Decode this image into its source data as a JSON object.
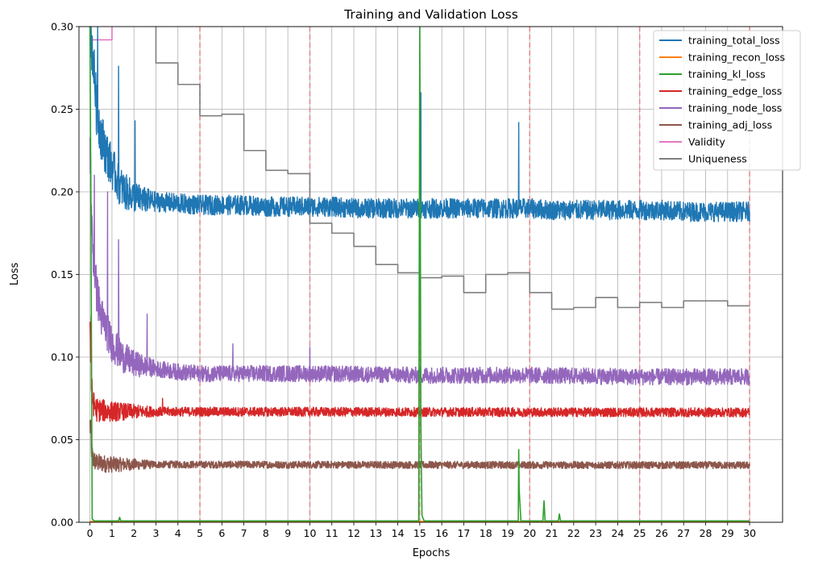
{
  "chart_data": {
    "type": "line",
    "title": "Training and Validation Loss",
    "xlabel": "Epochs",
    "ylabel": "Loss",
    "xlim": [
      -0.5,
      31.5
    ],
    "ylim": [
      0,
      0.3
    ],
    "xticks": [
      0,
      1,
      2,
      3,
      4,
      5,
      6,
      7,
      8,
      9,
      10,
      11,
      12,
      13,
      14,
      15,
      16,
      17,
      18,
      19,
      20,
      21,
      22,
      23,
      24,
      25,
      26,
      27,
      28,
      29,
      30
    ],
    "xtick_labels": [
      "0",
      "1",
      "2",
      "3",
      "4",
      "5",
      "6",
      "7",
      "8",
      "9",
      "10",
      "11",
      "12",
      "13",
      "14",
      "15",
      "16",
      "17",
      "18",
      "19",
      "20",
      "21",
      "22",
      "23",
      "24",
      "25",
      "26",
      "27",
      "28",
      "29",
      "30"
    ],
    "yticks": [
      0,
      0.05,
      0.1,
      0.15,
      0.2,
      0.25,
      0.3
    ],
    "ytick_labels": [
      "0.00",
      "0.05",
      "0.10",
      "0.15",
      "0.20",
      "0.25",
      "0.30"
    ],
    "grid": true,
    "legend_position": "top-right",
    "epoch_markers": [
      5,
      10,
      15,
      20,
      25,
      30
    ],
    "epoch_marker_color": "#e8848a",
    "series": [
      {
        "name": "training_total_loss",
        "color": "#1f77b4",
        "noisy": true,
        "noise": 0.006,
        "x": [
          0,
          0.15,
          0.3,
          0.5,
          0.7,
          1,
          1.3,
          1.6,
          2,
          2.5,
          3,
          4,
          5,
          6,
          7,
          8,
          9,
          10,
          11,
          12,
          13,
          14,
          15,
          16,
          17,
          18,
          19,
          20,
          21,
          22,
          23,
          24,
          25,
          26,
          27,
          28,
          29,
          30
        ],
        "y": [
          0.3,
          0.28,
          0.25,
          0.235,
          0.225,
          0.215,
          0.205,
          0.2,
          0.197,
          0.195,
          0.194,
          0.193,
          0.192,
          0.192,
          0.192,
          0.191,
          0.191,
          0.191,
          0.191,
          0.19,
          0.19,
          0.19,
          0.19,
          0.19,
          0.19,
          0.19,
          0.19,
          0.19,
          0.189,
          0.189,
          0.189,
          0.189,
          0.189,
          0.189,
          0.188,
          0.188,
          0.188,
          0.188
        ],
        "spikes": [
          [
            15.05,
            0.26
          ],
          [
            19.5,
            0.242
          ],
          [
            1.3,
            0.276
          ],
          [
            2.05,
            0.243
          ],
          [
            0.35,
            0.3
          ]
        ]
      },
      {
        "name": "training_recon_loss",
        "color": "#ff7f0e",
        "noisy": false,
        "x": [
          0,
          30
        ],
        "y": [
          0.0005,
          0.0005
        ]
      },
      {
        "name": "training_kl_loss",
        "color": "#2ca02c",
        "noisy": false,
        "x": [
          0,
          0.04,
          0.1,
          0.2,
          1.3,
          1.35,
          1.4,
          14.95,
          15.0,
          15.05,
          15.1,
          15.2,
          19.48,
          19.5,
          19.52,
          19.6,
          20.6,
          20.65,
          20.7,
          21.3,
          21.35,
          21.4,
          30
        ],
        "y": [
          0.3,
          0.2,
          0.002,
          0.0008,
          0.0008,
          0.003,
          0.0008,
          0.0008,
          0.3,
          0.06,
          0.004,
          0.0008,
          0.0008,
          0.044,
          0.02,
          0.0008,
          0.0008,
          0.013,
          0.0008,
          0.0008,
          0.005,
          0.0008,
          0.0008
        ]
      },
      {
        "name": "training_edge_loss",
        "color": "#d62728",
        "noisy": true,
        "noise": 0.0028,
        "x": [
          0,
          0.05,
          0.15,
          0.3,
          1,
          30
        ],
        "y": [
          0.125,
          0.085,
          0.072,
          0.068,
          0.067,
          0.0665
        ],
        "spikes": [
          [
            0.05,
            0.125
          ],
          [
            3.3,
            0.075
          ]
        ]
      },
      {
        "name": "training_node_loss",
        "color": "#9467bd",
        "noisy": true,
        "noise": 0.005,
        "x": [
          0,
          0.1,
          0.3,
          0.5,
          0.8,
          1,
          1.5,
          2,
          3,
          4,
          5,
          7,
          10,
          15,
          20,
          25,
          30
        ],
        "y": [
          0.23,
          0.17,
          0.14,
          0.125,
          0.115,
          0.108,
          0.1,
          0.096,
          0.093,
          0.091,
          0.09,
          0.09,
          0.09,
          0.089,
          0.089,
          0.088,
          0.088
        ],
        "spikes": [
          [
            0.2,
            0.21
          ],
          [
            0.8,
            0.2
          ],
          [
            1.3,
            0.171
          ],
          [
            2.6,
            0.126
          ],
          [
            6.5,
            0.108
          ],
          [
            10,
            0.106
          ]
        ]
      },
      {
        "name": "training_adj_loss",
        "color": "#8c564b",
        "noisy": true,
        "noise": 0.0022,
        "x": [
          0,
          0.05,
          0.15,
          0.3,
          1,
          30
        ],
        "y": [
          0.06,
          0.045,
          0.038,
          0.036,
          0.035,
          0.0345
        ],
        "spikes": [
          [
            0.05,
            0.062
          ]
        ]
      },
      {
        "name": "Validity",
        "color": "#e377c2",
        "noisy": false,
        "step": true,
        "x": [
          0,
          1,
          1.001,
          1.0
        ],
        "y": [
          0.292,
          0.292,
          0.31,
          0.31
        ]
      },
      {
        "name": "Uniqueness",
        "color": "#7f7f7f",
        "noisy": false,
        "step": true,
        "x": [
          2.99,
          3,
          4,
          5,
          6,
          7,
          8,
          9,
          10,
          11,
          12,
          13,
          14,
          15,
          16,
          17,
          18,
          19,
          20,
          21,
          22,
          23,
          24,
          25,
          26,
          27,
          28,
          29,
          30
        ],
        "y": [
          0.31,
          0.278,
          0.265,
          0.246,
          0.247,
          0.225,
          0.213,
          0.211,
          0.181,
          0.175,
          0.167,
          0.156,
          0.151,
          0.148,
          0.149,
          0.139,
          0.15,
          0.151,
          0.139,
          0.129,
          0.13,
          0.136,
          0.13,
          0.133,
          0.13,
          0.134,
          0.134,
          0.131,
          0.131
        ]
      }
    ]
  }
}
